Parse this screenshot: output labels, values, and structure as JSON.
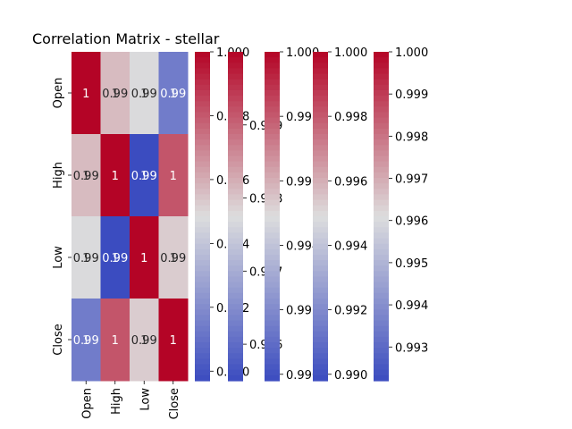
{
  "chart_data": {
    "type": "heatmap",
    "title": "Correlation Matrix - stellar",
    "row_labels": [
      "Open",
      "High",
      "Low",
      "Close"
    ],
    "col_labels": [
      "Open",
      "High",
      "Low",
      "Close"
    ],
    "colormap": "coolwarm",
    "colormap_low": "#3b4cc0",
    "colormap_mid": "#dddddd",
    "colormap_high": "#b40426",
    "cells": [
      [
        1.0,
        0.9957,
        0.9948,
        0.9915
      ],
      [
        0.9957,
        1.0,
        0.9898,
        0.9981
      ],
      [
        0.9948,
        0.9898,
        1.0,
        0.9953
      ],
      [
        0.9915,
        0.9981,
        0.9953,
        1.0
      ]
    ],
    "annotations": [
      [
        [
          "1"
        ],
        [
          "0.99",
          "1"
        ],
        [
          "0.99",
          "1"
        ],
        [
          "0.99",
          "1"
        ]
      ],
      [
        [
          "0.99",
          "1"
        ],
        [
          "1"
        ],
        [
          "0.99",
          "1"
        ],
        [
          "1"
        ]
      ],
      [
        [
          "0.99",
          "1"
        ],
        [
          "0.99",
          "1"
        ],
        [
          "1"
        ],
        [
          "0.99",
          "1"
        ]
      ],
      [
        [
          "0.99",
          "1"
        ],
        [
          "1"
        ],
        [
          "0.99",
          "1"
        ],
        [
          "1"
        ]
      ]
    ],
    "colorbars": [
      {
        "min": 0.9897,
        "max": 1.0,
        "ticks": [
          0.99,
          0.992,
          0.994,
          0.996,
          0.998,
          1.0
        ],
        "tick_labels": [
          "0.990",
          "0.992",
          "0.994",
          "0.996",
          "0.998",
          "1.000"
        ]
      },
      {
        "min": 0.9955,
        "max": 1.0,
        "ticks": [
          0.996,
          0.997,
          0.998,
          0.999
        ],
        "tick_labels": [
          "0.996",
          "0.997",
          "0.998",
          "0.999"
        ]
      },
      {
        "min": 0.9898,
        "max": 1.0,
        "ticks": [
          0.99,
          0.992,
          0.994,
          0.996,
          0.998,
          1.0
        ],
        "tick_labels": [
          "0.990",
          "0.992",
          "0.994",
          "0.996",
          "0.998",
          "1.000"
        ]
      },
      {
        "min": 0.9898,
        "max": 1.0,
        "ticks": [
          0.99,
          0.992,
          0.994,
          0.996,
          0.998,
          1.0
        ],
        "tick_labels": [
          "0.990",
          "0.992",
          "0.994",
          "0.996",
          "0.998",
          "1.000"
        ]
      },
      {
        "min": 0.9922,
        "max": 1.0,
        "ticks": [
          0.993,
          0.994,
          0.995,
          0.996,
          0.997,
          0.998,
          0.999,
          1.0
        ],
        "tick_labels": [
          "0.993",
          "0.994",
          "0.995",
          "0.996",
          "0.997",
          "0.998",
          "0.999",
          "1.000"
        ]
      }
    ]
  }
}
